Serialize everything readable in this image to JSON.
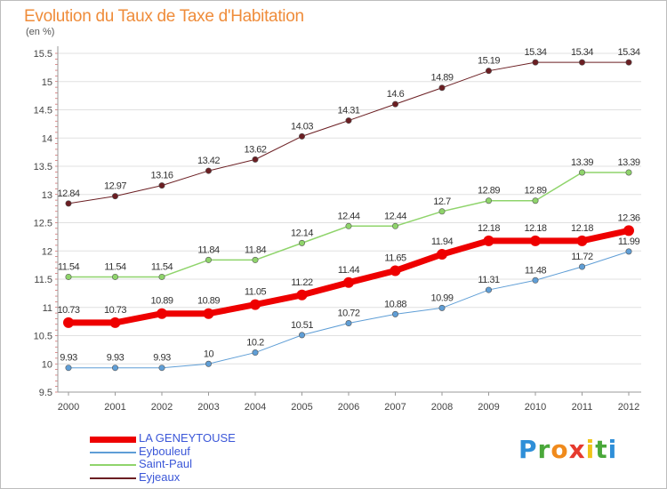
{
  "header": {
    "title": "Evolution du Taux de Taxe d'Habitation",
    "unit": "(en %)"
  },
  "colors": {
    "grid": "#e0e0e0",
    "axis": "#9a9a9a",
    "text": "#444444"
  },
  "logo": {
    "letters": [
      "P",
      "r",
      "o",
      "x",
      "i",
      "t",
      "i"
    ],
    "colors": [
      "#2f8fd8",
      "#4aa83a",
      "#f08a1c",
      "#e63a2e",
      "#f0c419",
      "#4aa83a",
      "#2f8fd8"
    ]
  },
  "chart_data": {
    "type": "line",
    "title": "Evolution du Taux de Taxe d'Habitation",
    "ylabel": "(en %)",
    "xlabel": "",
    "ylim": [
      9.5,
      15.5
    ],
    "yticks": [
      "9.5",
      "10",
      "10.5",
      "11",
      "11.5",
      "12",
      "12.5",
      "13",
      "13.5",
      "14",
      "14.5",
      "15",
      "15.5"
    ],
    "x": [
      "2000",
      "2001",
      "2002",
      "2003",
      "2004",
      "2005",
      "2006",
      "2007",
      "2008",
      "2009",
      "2010",
      "2011",
      "2012"
    ],
    "grid": "horizontal",
    "legend_position": "bottom-left",
    "series": [
      {
        "name": "Eyjeaux",
        "color": "#6b1e22",
        "width": 1,
        "values": [
          12.84,
          12.97,
          13.16,
          13.42,
          13.62,
          14.03,
          14.31,
          14.6,
          14.89,
          15.19,
          15.34,
          15.34,
          15.34
        ],
        "labels": [
          "12.84",
          "12.97",
          "13.16",
          "13.42",
          "13.62",
          "14.03",
          "14.31",
          "14.6",
          "14.89",
          "15.19",
          "15.34",
          "15.34",
          "15.34"
        ]
      },
      {
        "name": "Saint-Paul",
        "color": "#8fd46b",
        "width": 1.5,
        "values": [
          11.54,
          11.54,
          11.54,
          11.84,
          11.84,
          12.14,
          12.44,
          12.44,
          12.7,
          12.89,
          12.89,
          13.39,
          13.39
        ],
        "labels": [
          "11.54",
          "11.54",
          "11.54",
          "11.84",
          "11.84",
          "12.14",
          "12.44",
          "12.44",
          "12.7",
          "12.89",
          "12.89",
          "13.39",
          "13.39"
        ]
      },
      {
        "name": "Eybouleuf",
        "color": "#5f9ed6",
        "width": 1,
        "values": [
          9.93,
          9.93,
          9.93,
          10,
          10.2,
          10.51,
          10.72,
          10.88,
          10.99,
          11.31,
          11.48,
          11.72,
          11.99
        ],
        "labels": [
          "9.93",
          "9.93",
          "9.93",
          "10",
          "10.2",
          "10.51",
          "10.72",
          "10.88",
          "10.99",
          "11.31",
          "11.48",
          "11.72",
          "11.99"
        ]
      },
      {
        "name": "LA GENEYTOUSE",
        "color": "#ee0000",
        "width": 7,
        "values": [
          10.73,
          10.73,
          10.89,
          10.89,
          11.05,
          11.22,
          11.44,
          11.65,
          11.94,
          12.18,
          12.18,
          12.18,
          12.36
        ],
        "labels": [
          "10.73",
          "10.73",
          "10.89",
          "10.89",
          "11.05",
          "11.22",
          "11.44",
          "11.65",
          "11.94",
          "12.18",
          "12.18",
          "12.18",
          "12.36"
        ]
      }
    ],
    "legend": [
      "LA GENEYTOUSE",
      "Eybouleuf",
      "Saint-Paul",
      "Eyjeaux"
    ]
  }
}
